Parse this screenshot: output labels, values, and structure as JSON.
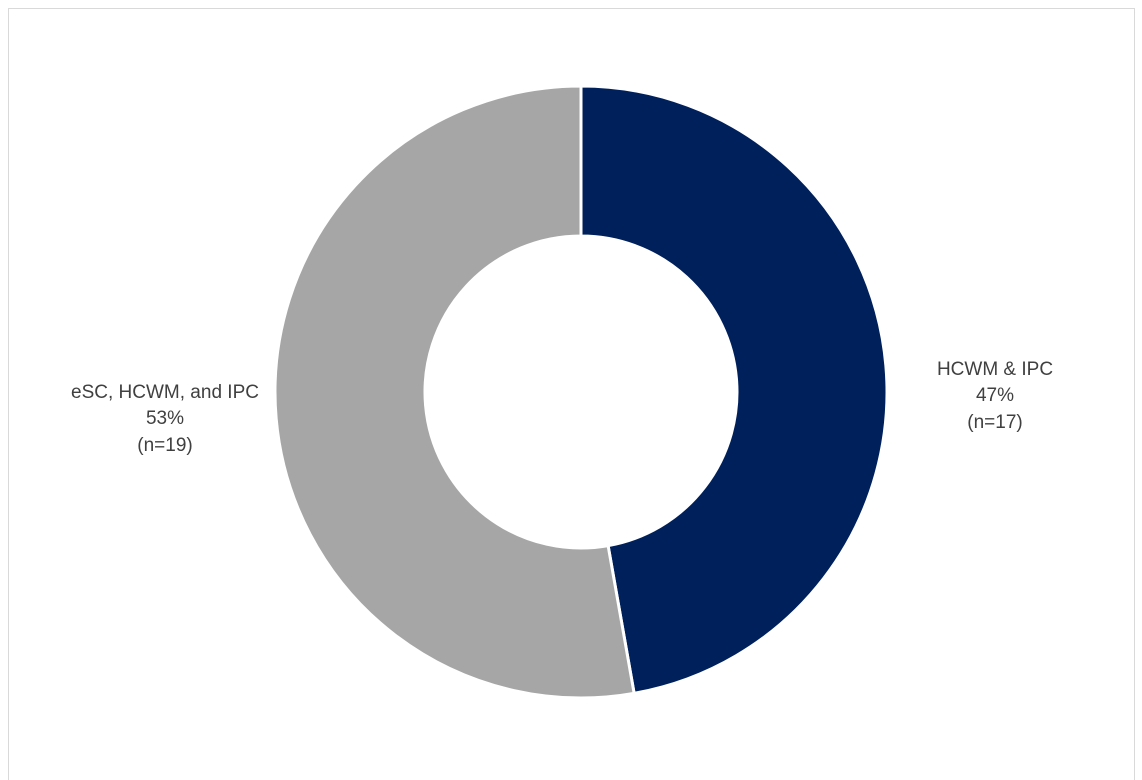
{
  "chart_data": {
    "type": "pie",
    "donut": true,
    "categories": [
      "HCWM & IPC",
      "eSC, HCWM, and IPC"
    ],
    "values": [
      17,
      19
    ],
    "percent_labels": [
      "47%",
      "53%"
    ],
    "count_labels": [
      "(n=17)",
      "(n=19)"
    ],
    "colors": [
      "#00205b",
      "#a6a6a6"
    ],
    "start_angle_deg": 0,
    "direction": "clockwise",
    "legend": "none",
    "title": ""
  }
}
